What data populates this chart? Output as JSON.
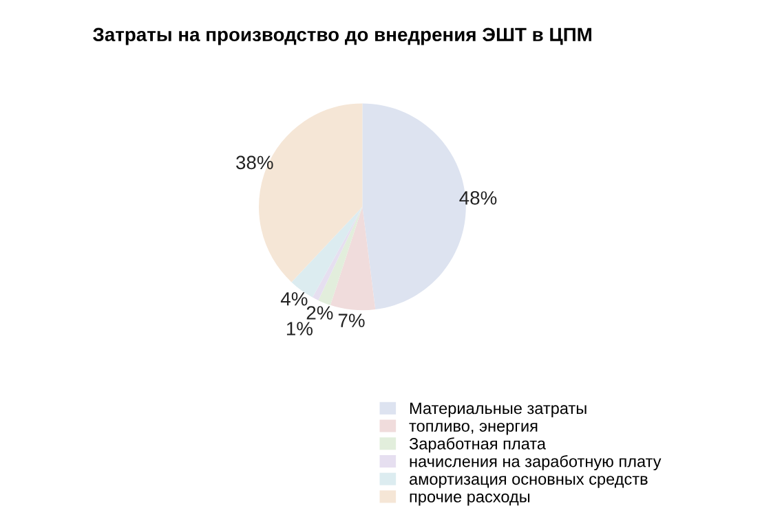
{
  "chart_data": {
    "type": "pie",
    "title": "Затраты на производство до внедрения ЭШТ в ЦПМ",
    "categories": [
      "Материальные затраты",
      "топливо, энергия",
      "Заработная плата",
      "начисления на заработную плату",
      "амортизация основных средств",
      "прочие расходы"
    ],
    "values": [
      48,
      7,
      2,
      1,
      4,
      38
    ],
    "value_labels": [
      "48%",
      "7%",
      "2%",
      "1%",
      "4%",
      "38%"
    ],
    "colors": [
      "#dde3f0",
      "#f0dcdc",
      "#e2eedc",
      "#e6dff0",
      "#dcecf0",
      "#f5e6d6"
    ],
    "legend": "bottom"
  }
}
